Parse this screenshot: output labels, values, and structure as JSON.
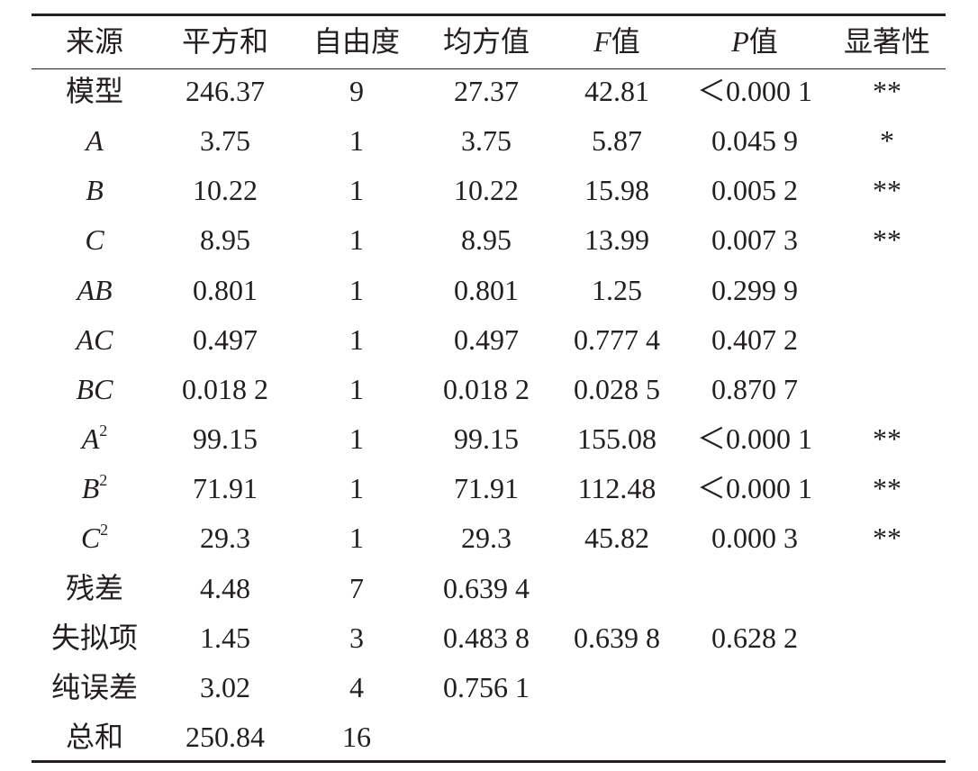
{
  "table": {
    "columns": [
      {
        "key": "source",
        "label": "来源"
      },
      {
        "key": "ss",
        "label": "平方和"
      },
      {
        "key": "df",
        "label": "自由度"
      },
      {
        "key": "ms",
        "label": "均方值"
      },
      {
        "key": "f",
        "label": {
          "italic": "F",
          "text": "值"
        }
      },
      {
        "key": "p",
        "label": {
          "italic": "P",
          "text": "值"
        }
      },
      {
        "key": "sig",
        "label": "显著性"
      }
    ],
    "rows": [
      {
        "source": "模型",
        "ss": "246.37",
        "df": "9",
        "ms": "27.37",
        "f": "42.81",
        "p": "＜0.000 1",
        "sig": "**"
      },
      {
        "source": {
          "italic": "A"
        },
        "ss": "3.75",
        "df": "1",
        "ms": "3.75",
        "f": "5.87",
        "p": "0.045 9",
        "sig": "*"
      },
      {
        "source": {
          "italic": "B"
        },
        "ss": "10.22",
        "df": "1",
        "ms": "10.22",
        "f": "15.98",
        "p": "0.005 2",
        "sig": "**"
      },
      {
        "source": {
          "italic": "C"
        },
        "ss": "8.95",
        "df": "1",
        "ms": "8.95",
        "f": "13.99",
        "p": "0.007 3",
        "sig": "**"
      },
      {
        "source": {
          "italic": "AB"
        },
        "ss": "0.801",
        "df": "1",
        "ms": "0.801",
        "f": "1.25",
        "p": "0.299 9"
      },
      {
        "source": {
          "italic": "AC"
        },
        "ss": "0.497",
        "df": "1",
        "ms": "0.497",
        "f": "0.777 4",
        "p": "0.407 2"
      },
      {
        "source": {
          "italic": "BC"
        },
        "ss": "0.018 2",
        "df": "1",
        "ms": "0.018 2",
        "f": "0.028 5",
        "p": "0.870 7"
      },
      {
        "source": {
          "italic": "A",
          "sup": "2"
        },
        "ss": "99.15",
        "df": "1",
        "ms": "99.15",
        "f": "155.08",
        "p": "＜0.000 1",
        "sig": "**"
      },
      {
        "source": {
          "italic": "B",
          "sup": "2"
        },
        "ss": "71.91",
        "df": "1",
        "ms": "71.91",
        "f": "112.48",
        "p": "＜0.000 1",
        "sig": "**"
      },
      {
        "source": {
          "italic": "C",
          "sup": "2"
        },
        "ss": "29.3",
        "df": "1",
        "ms": "29.3",
        "f": "45.82",
        "p": "0.000 3",
        "sig": "**"
      },
      {
        "source": "残差",
        "ss": "4.48",
        "df": "7",
        "ms": "0.639 4"
      },
      {
        "source": "失拟项",
        "ss": "1.45",
        "df": "3",
        "ms": "0.483 8",
        "f": "0.639 8",
        "p": "0.628 2"
      },
      {
        "source": "纯误差",
        "ss": "3.02",
        "df": "4",
        "ms": "0.756 1"
      },
      {
        "source": "总和",
        "ss": "250.84",
        "df": "16"
      }
    ]
  }
}
